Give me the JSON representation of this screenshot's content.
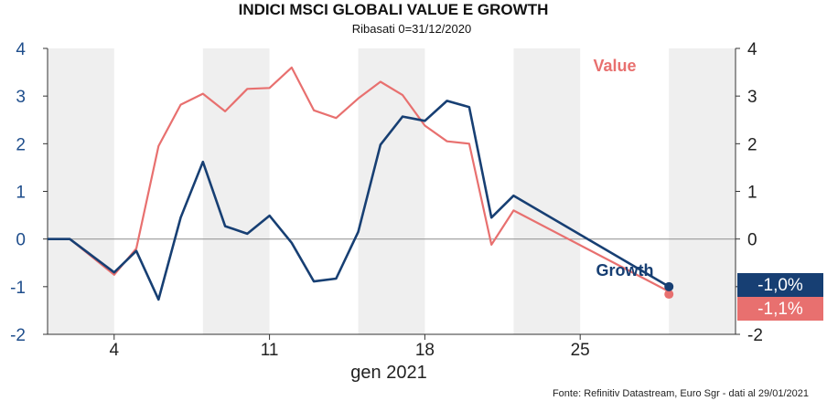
{
  "title": "INDICI MSCI GLOBALI VALUE E GROWTH",
  "subtitle": "Ribasati 0=31/12/2020",
  "source": "Fonte: Refinitiv Datastream, Euro Sgr - dati al 29/01/2021",
  "colors": {
    "value": "#e8706f",
    "growth": "#173f73",
    "shade": "#efefef",
    "zero_line": "#9a9a9a"
  },
  "chart_data": {
    "type": "line",
    "xlabel": "gen 2021",
    "ylabel": "",
    "ylim": [
      -2,
      4
    ],
    "y_ticks": [
      "-2",
      "-1",
      "0",
      "1",
      "2",
      "3",
      "4"
    ],
    "y_tick_values": [
      -2,
      -1,
      0,
      1,
      2,
      3,
      4
    ],
    "x_ticks": [
      {
        "x": 4,
        "label": "4"
      },
      {
        "x": 11,
        "label": "11"
      },
      {
        "x": 18,
        "label": "18"
      },
      {
        "x": 25,
        "label": "25"
      }
    ],
    "xlim": [
      1,
      32
    ],
    "shaded_ranges": [
      [
        1,
        4
      ],
      [
        8,
        11
      ],
      [
        15,
        18
      ],
      [
        22,
        25
      ],
      [
        29,
        32
      ]
    ],
    "grid": false,
    "series": [
      {
        "name": "Value",
        "x": [
          1,
          2,
          4,
          5,
          6,
          7,
          8,
          9,
          10,
          11,
          12,
          13,
          14,
          15,
          16,
          17,
          18,
          19,
          20,
          21,
          22
        ],
        "values": [
          0,
          0,
          -0.75,
          -0.2,
          1.95,
          2.82,
          3.05,
          2.68,
          3.15,
          3.17,
          3.6,
          2.7,
          2.54,
          2.95,
          3.3,
          3.02,
          2.38,
          2.05,
          2.0,
          -0.12,
          0.6
        ],
        "end_x": 29,
        "end_value": -1.1,
        "end_label": "-1,1%"
      },
      {
        "name": "Growth",
        "x": [
          1,
          2,
          4,
          5,
          6,
          7,
          8,
          9,
          10,
          11,
          12,
          13,
          14,
          15,
          16,
          17,
          18,
          19,
          20,
          21,
          22
        ],
        "values": [
          0,
          0,
          -0.7,
          -0.25,
          -1.27,
          0.45,
          1.62,
          0.27,
          0.11,
          0.49,
          -0.08,
          -0.89,
          -0.83,
          0.15,
          1.98,
          2.57,
          2.48,
          2.9,
          2.77,
          0.45,
          0.91
        ],
        "end_x": 29,
        "end_value": -1.0,
        "end_label": "-1,0%"
      }
    ]
  }
}
